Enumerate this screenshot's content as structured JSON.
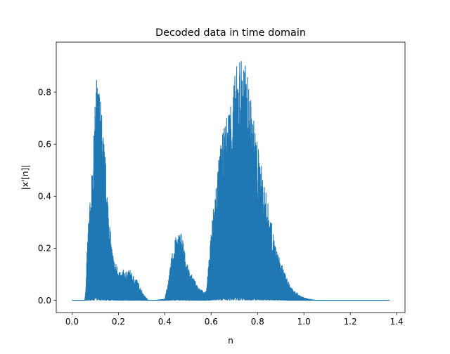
{
  "chart_data": {
    "type": "line",
    "title": "Decoded data in time domain",
    "xlabel": "n",
    "ylabel": "|x'[n]|",
    "xlim": [
      -0.068,
      1.436
    ],
    "ylim": [
      -0.047,
      0.992
    ],
    "grid": false,
    "legend": "none",
    "series_color": "#1f77b4",
    "x_ticks": [
      0.0,
      0.2,
      0.4,
      0.6,
      0.8,
      1.0,
      1.2,
      1.4
    ],
    "x_tick_labels": [
      "0.0",
      "0.2",
      "0.4",
      "0.6",
      "0.8",
      "1.0",
      "1.2",
      "1.4"
    ],
    "y_ticks": [
      0.0,
      0.2,
      0.4,
      0.6,
      0.8
    ],
    "y_tick_labels": [
      "0.0",
      "0.2",
      "0.4",
      "0.6",
      "0.8"
    ],
    "series": [
      {
        "envelope": {
          "x": [
            0.0,
            0.055,
            0.06,
            0.065,
            0.07,
            0.08,
            0.09,
            0.1,
            0.105,
            0.11,
            0.115,
            0.12,
            0.13,
            0.14,
            0.15,
            0.16,
            0.17,
            0.18,
            0.19,
            0.2,
            0.21,
            0.22,
            0.23,
            0.24,
            0.25,
            0.26,
            0.27,
            0.28,
            0.29,
            0.3,
            0.31,
            0.32,
            0.33,
            0.36,
            0.4,
            0.42,
            0.43,
            0.44,
            0.45,
            0.46,
            0.47,
            0.48,
            0.49,
            0.5,
            0.52,
            0.54,
            0.55,
            0.56,
            0.57,
            0.58,
            0.59,
            0.6,
            0.62,
            0.64,
            0.66,
            0.68,
            0.7,
            0.72,
            0.74,
            0.76,
            0.78,
            0.8,
            0.82,
            0.84,
            0.86,
            0.88,
            0.9,
            0.92,
            0.94,
            0.96,
            0.98,
            1.0,
            1.02,
            1.05,
            1.1,
            1.2,
            1.3,
            1.37
          ],
          "y": [
            0.0,
            0.0,
            0.05,
            0.2,
            0.32,
            0.4,
            0.55,
            0.78,
            0.87,
            0.82,
            0.84,
            0.82,
            0.7,
            0.6,
            0.47,
            0.33,
            0.22,
            0.16,
            0.14,
            0.13,
            0.1,
            0.12,
            0.11,
            0.11,
            0.12,
            0.1,
            0.09,
            0.08,
            0.06,
            0.04,
            0.02,
            0.01,
            0.0,
            0.0,
            0.005,
            0.1,
            0.18,
            0.22,
            0.25,
            0.26,
            0.27,
            0.23,
            0.16,
            0.13,
            0.09,
            0.06,
            0.05,
            0.04,
            0.03,
            0.04,
            0.15,
            0.28,
            0.45,
            0.6,
            0.68,
            0.77,
            0.86,
            0.945,
            0.94,
            0.85,
            0.72,
            0.61,
            0.5,
            0.4,
            0.3,
            0.2,
            0.15,
            0.1,
            0.06,
            0.04,
            0.02,
            0.01,
            0.005,
            0.0,
            0.0,
            0.0,
            0.0,
            0.0
          ]
        }
      }
    ]
  }
}
